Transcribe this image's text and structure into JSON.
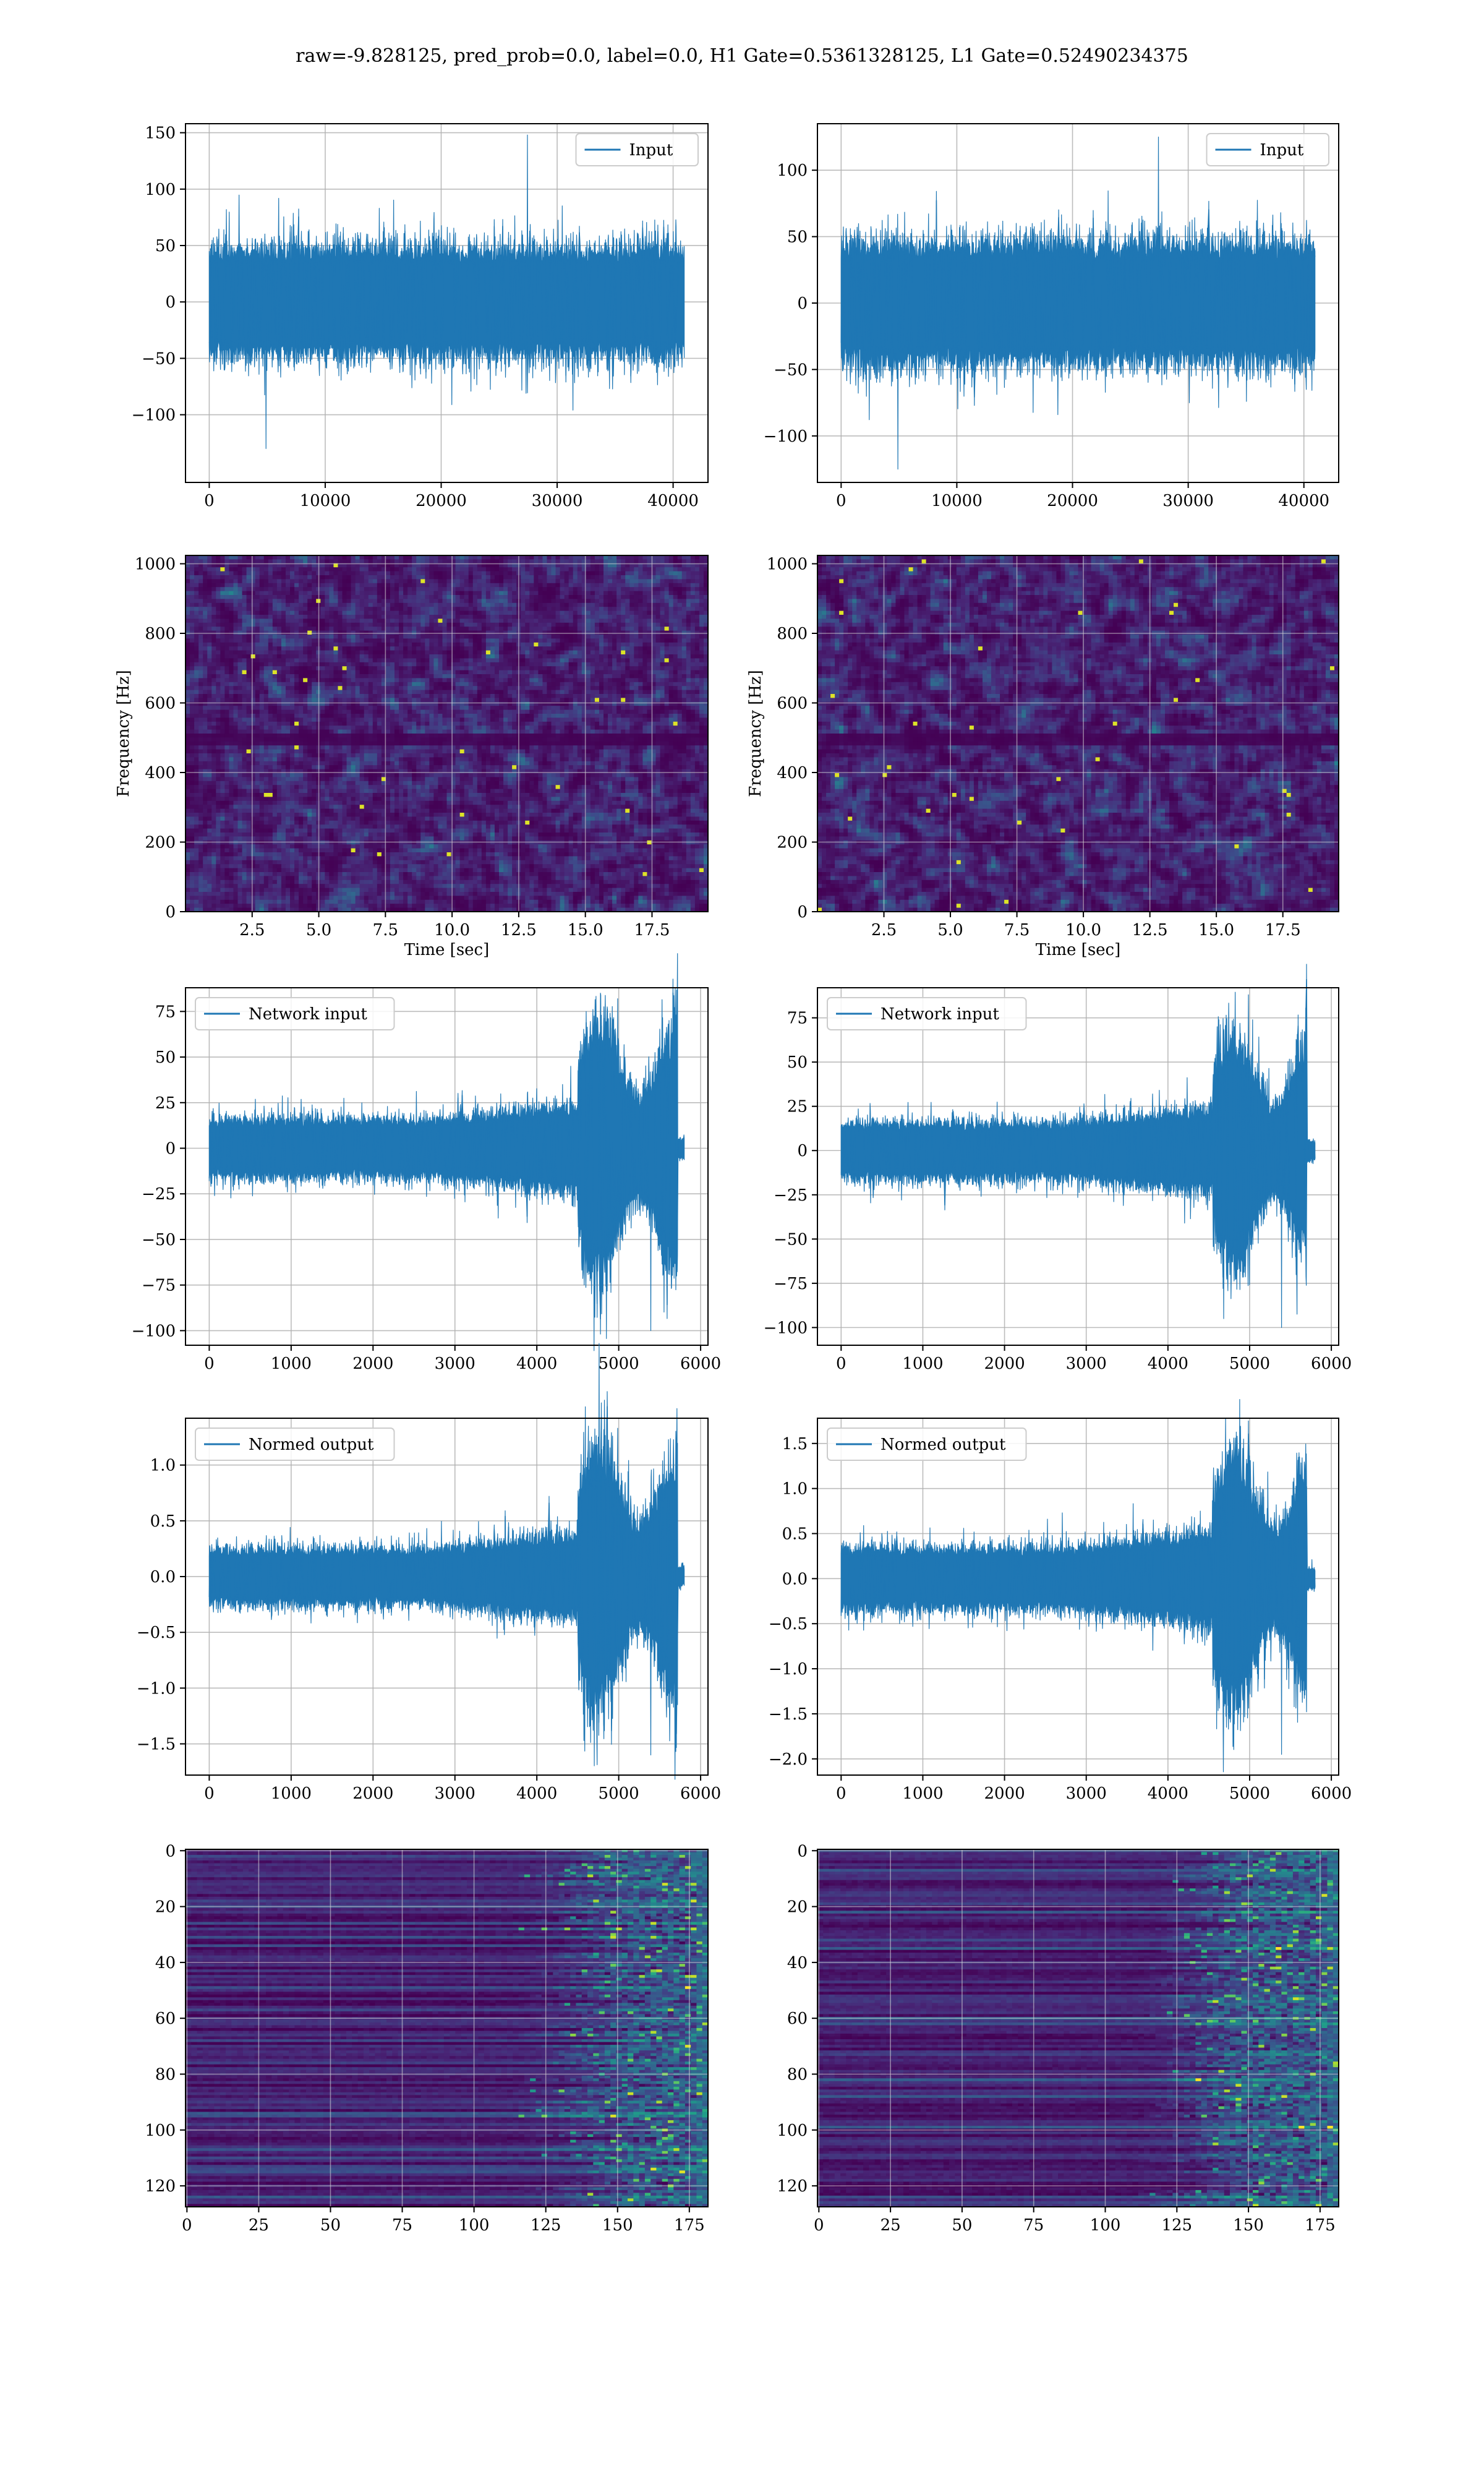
{
  "figure": {
    "suptitle": "raw=-9.828125, pred_prob=0.0, label=0.0, H1 Gate=0.5361328125, L1 Gate=0.52490234375"
  },
  "colors": {
    "line": "#1f77b4",
    "grid": "#b0b0b0",
    "viridis": [
      "#440154",
      "#482878",
      "#3e4989",
      "#31688e",
      "#26828e",
      "#1f9e89",
      "#35b779",
      "#6ece58",
      "#b5de2b",
      "#fde725"
    ]
  },
  "chart_data": [
    {
      "id": "input-h1",
      "type": "line",
      "series": [
        {
          "name": "Input"
        }
      ],
      "x_range": [
        0,
        40960
      ],
      "xlim": [
        -2048,
        43008
      ],
      "ylim": [
        -160,
        158
      ],
      "xticks": [
        0,
        10000,
        20000,
        30000,
        40000
      ],
      "xtick_labels": [
        "0",
        "10000",
        "20000",
        "30000",
        "40000"
      ],
      "yticks": [
        -100,
        -50,
        0,
        50,
        100,
        150
      ],
      "ytick_labels": [
        "−100",
        "−50",
        "0",
        "50",
        "100",
        "150"
      ],
      "signal": {
        "kind": "noise",
        "sigma": 21,
        "peak": 148,
        "trough": -130
      },
      "legend_loc": "upper right",
      "grid": true
    },
    {
      "id": "input-l1",
      "type": "line",
      "series": [
        {
          "name": "Input"
        }
      ],
      "x_range": [
        0,
        40960
      ],
      "xlim": [
        -2048,
        43008
      ],
      "ylim": [
        -135,
        135
      ],
      "xticks": [
        0,
        10000,
        20000,
        30000,
        40000
      ],
      "xtick_labels": [
        "0",
        "10000",
        "20000",
        "30000",
        "40000"
      ],
      "yticks": [
        -100,
        -50,
        0,
        50,
        100
      ],
      "ytick_labels": [
        "−100",
        "−50",
        "0",
        "50",
        "100"
      ],
      "signal": {
        "kind": "noise",
        "sigma": 20,
        "peak": 125,
        "trough": -125
      },
      "legend_loc": "upper right",
      "grid": true
    },
    {
      "id": "spec-h1",
      "type": "heatmap",
      "xlabel": "Time [sec]",
      "ylabel": "Frequency [Hz]",
      "xlim": [
        0,
        19.6
      ],
      "ylim": [
        0,
        1024
      ],
      "xticks": [
        2.5,
        5.0,
        7.5,
        10.0,
        12.5,
        15.0,
        17.5
      ],
      "xtick_labels": [
        "2.5",
        "5.0",
        "7.5",
        "10.0",
        "12.5",
        "15.0",
        "17.5"
      ],
      "yticks": [
        0,
        200,
        400,
        600,
        800,
        1000
      ],
      "ytick_labels": [
        "0",
        "200",
        "400",
        "600",
        "800",
        "1000"
      ],
      "dark_band_hz": [
        480,
        512
      ],
      "grid": true
    },
    {
      "id": "spec-l1",
      "type": "heatmap",
      "xlabel": "Time [sec]",
      "ylabel": "Frequency [Hz]",
      "xlim": [
        0,
        19.6
      ],
      "ylim": [
        0,
        1024
      ],
      "xticks": [
        2.5,
        5.0,
        7.5,
        10.0,
        12.5,
        15.0,
        17.5
      ],
      "xtick_labels": [
        "2.5",
        "5.0",
        "7.5",
        "10.0",
        "12.5",
        "15.0",
        "17.5"
      ],
      "yticks": [
        0,
        200,
        400,
        600,
        800,
        1000
      ],
      "ytick_labels": [
        "0",
        "200",
        "400",
        "600",
        "800",
        "1000"
      ],
      "dark_band_hz": [
        480,
        512
      ],
      "grid": true
    },
    {
      "id": "network-input-h1",
      "type": "line",
      "series": [
        {
          "name": "Network input"
        }
      ],
      "x_range": [
        0,
        5800
      ],
      "xlim": [
        -290,
        6090
      ],
      "ylim": [
        -108,
        88
      ],
      "xticks": [
        0,
        1000,
        2000,
        3000,
        4000,
        5000,
        6000
      ],
      "xtick_labels": [
        "0",
        "1000",
        "2000",
        "3000",
        "4000",
        "5000",
        "6000"
      ],
      "yticks": [
        -100,
        -75,
        -50,
        -25,
        0,
        25,
        50,
        75
      ],
      "ytick_labels": [
        "−100",
        "−75",
        "−50",
        "−25",
        "0",
        "25",
        "50",
        "75"
      ],
      "signal": {
        "kind": "chirp",
        "base": 7,
        "burst_start": 4500,
        "burst_end": 5720,
        "burst_amp": 28,
        "peak": 82,
        "trough": -100
      },
      "legend_loc": "upper left",
      "grid": true
    },
    {
      "id": "network-input-l1",
      "type": "line",
      "series": [
        {
          "name": "Network input"
        }
      ],
      "x_range": [
        0,
        5800
      ],
      "xlim": [
        -290,
        6090
      ],
      "ylim": [
        -110,
        92
      ],
      "xticks": [
        0,
        1000,
        2000,
        3000,
        4000,
        5000,
        6000
      ],
      "xtick_labels": [
        "0",
        "1000",
        "2000",
        "3000",
        "4000",
        "5000",
        "6000"
      ],
      "yticks": [
        -100,
        -75,
        -50,
        -25,
        0,
        25,
        50,
        75
      ],
      "ytick_labels": [
        "−100",
        "−75",
        "−50",
        "−25",
        "0",
        "25",
        "50",
        "75"
      ],
      "signal": {
        "kind": "chirp",
        "base": 7,
        "burst_start": 4550,
        "burst_end": 5700,
        "burst_amp": 26,
        "peak": 88,
        "trough": -100
      },
      "legend_loc": "upper left",
      "grid": true
    },
    {
      "id": "normed-output-h1",
      "type": "line",
      "series": [
        {
          "name": "Normed output"
        }
      ],
      "x_range": [
        0,
        5800
      ],
      "xlim": [
        -290,
        6090
      ],
      "ylim": [
        -1.78,
        1.42
      ],
      "xticks": [
        0,
        1000,
        2000,
        3000,
        4000,
        5000,
        6000
      ],
      "xtick_labels": [
        "0",
        "1000",
        "2000",
        "3000",
        "4000",
        "5000",
        "6000"
      ],
      "yticks": [
        -1.5,
        -1.0,
        -0.5,
        0.0,
        0.5,
        1.0
      ],
      "ytick_labels": [
        "−1.5",
        "−1.0",
        "−0.5",
        "0.0",
        "0.5",
        "1.0"
      ],
      "signal": {
        "kind": "chirp",
        "base": 0.11,
        "burst_start": 4500,
        "burst_end": 5720,
        "burst_amp": 0.46,
        "peak": 1.33,
        "trough": -1.6
      },
      "legend_loc": "upper left",
      "grid": true
    },
    {
      "id": "normed-output-l1",
      "type": "line",
      "series": [
        {
          "name": "Normed output"
        }
      ],
      "x_range": [
        0,
        5800
      ],
      "xlim": [
        -290,
        6090
      ],
      "ylim": [
        -2.18,
        1.78
      ],
      "xticks": [
        0,
        1000,
        2000,
        3000,
        4000,
        5000,
        6000
      ],
      "xtick_labels": [
        "0",
        "1000",
        "2000",
        "3000",
        "4000",
        "5000",
        "6000"
      ],
      "yticks": [
        -2.0,
        -1.5,
        -1.0,
        -0.5,
        0.0,
        0.5,
        1.0,
        1.5
      ],
      "ytick_labels": [
        "−2.0",
        "−1.5",
        "−1.0",
        "−0.5",
        "0.0",
        "0.5",
        "1.0",
        "1.5"
      ],
      "signal": {
        "kind": "chirp",
        "base": 0.15,
        "burst_start": 4550,
        "burst_end": 5700,
        "burst_amp": 0.55,
        "peak": 1.75,
        "trough": -1.95
      },
      "legend_loc": "upper left",
      "grid": true
    },
    {
      "id": "feature-map-h1",
      "type": "heatmap",
      "xlim": [
        -0.5,
        181.5
      ],
      "ylim": [
        127.5,
        -0.5
      ],
      "xticks": [
        0,
        25,
        50,
        75,
        100,
        125,
        150,
        175
      ],
      "xtick_labels": [
        "0",
        "25",
        "50",
        "75",
        "100",
        "125",
        "150",
        "175"
      ],
      "yticks": [
        0,
        20,
        40,
        60,
        80,
        100,
        120
      ],
      "ytick_labels": [
        "0",
        "20",
        "40",
        "60",
        "80",
        "100",
        "120"
      ],
      "activity_onset": 120,
      "grid": true
    },
    {
      "id": "feature-map-l1",
      "type": "heatmap",
      "xlim": [
        -0.5,
        181.5
      ],
      "ylim": [
        127.5,
        -0.5
      ],
      "xticks": [
        0,
        25,
        50,
        75,
        100,
        125,
        150,
        175
      ],
      "xtick_labels": [
        "0",
        "25",
        "50",
        "75",
        "100",
        "125",
        "150",
        "175"
      ],
      "yticks": [
        0,
        20,
        40,
        60,
        80,
        100,
        120
      ],
      "ytick_labels": [
        "0",
        "20",
        "40",
        "60",
        "80",
        "100",
        "120"
      ],
      "activity_onset": 115,
      "grid": true
    }
  ]
}
